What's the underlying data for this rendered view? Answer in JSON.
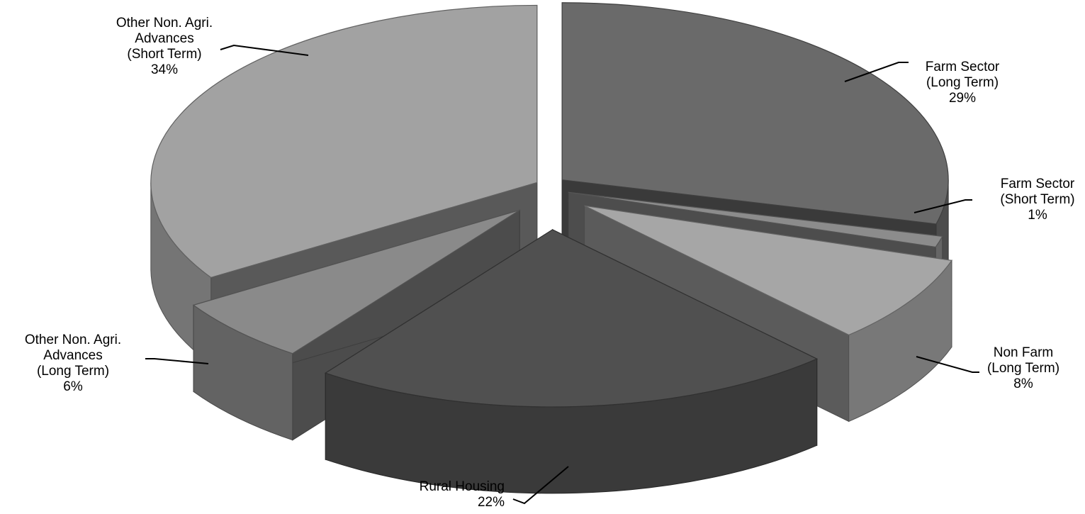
{
  "chart_data": {
    "type": "pie",
    "style": "3d-exploded",
    "title": "",
    "slices": [
      {
        "label": [
          "Farm Sector",
          "(Long Term)"
        ],
        "value": 29,
        "value_label": "29%",
        "color": "#6a6a6a"
      },
      {
        "label": [
          "Farm Sector",
          "(Short Term)"
        ],
        "value": 1,
        "value_label": "1%",
        "color": "#8c8c8c"
      },
      {
        "label": [
          "Non Farm",
          "(Long Term)"
        ],
        "value": 8,
        "value_label": "8%",
        "color": "#a6a6a6"
      },
      {
        "label": [
          "Rural Housing"
        ],
        "value": 22,
        "value_label": "22%",
        "color": "#505050"
      },
      {
        "label": [
          "Other Non. Agri.",
          "Advances",
          "(Long Term)"
        ],
        "value": 6,
        "value_label": "6%",
        "color": "#8a8a8a"
      },
      {
        "label": [
          "Other Non. Agri.",
          "Advances",
          "(Short Term)"
        ],
        "value": 34,
        "value_label": "34%",
        "color": "#a2a2a2"
      }
    ],
    "legend": "none"
  }
}
